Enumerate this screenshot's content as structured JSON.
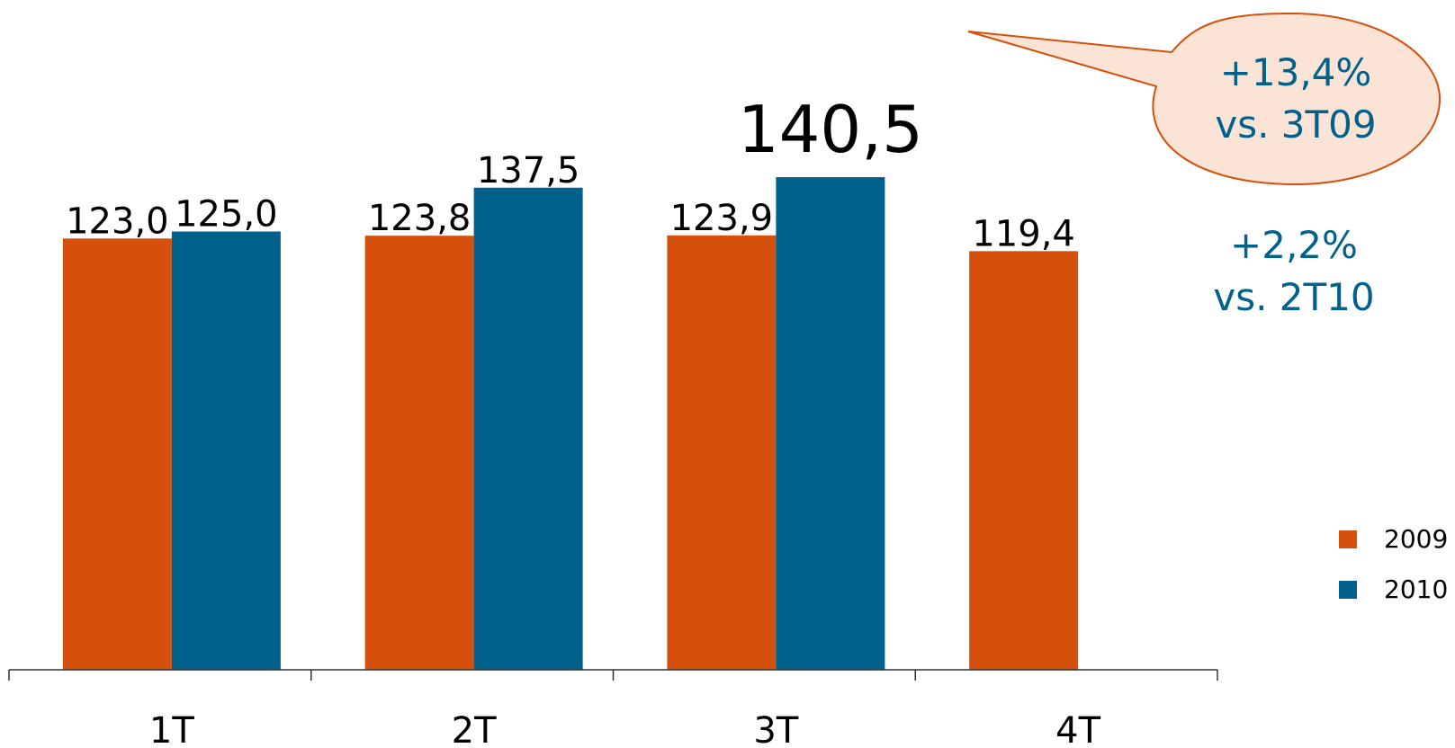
{
  "chart_data": {
    "type": "bar",
    "categories": [
      "1T",
      "2T",
      "3T",
      "4T"
    ],
    "series": [
      {
        "name": "2009",
        "color": "#D4500B",
        "values": [
          123.0,
          123.8,
          123.9,
          119.4
        ],
        "labels": [
          "123,0",
          "123,8",
          "123,9",
          "119,4"
        ]
      },
      {
        "name": "2010",
        "color": "#00628C",
        "values": [
          125.0,
          137.5,
          140.5,
          null
        ],
        "labels": [
          "125,0",
          "137,5",
          "140,5",
          ""
        ]
      }
    ],
    "highlighted_label": "140,5",
    "legend_position": "right",
    "grid": false,
    "title": "",
    "xlabel": "",
    "ylabel": ""
  },
  "annotations": {
    "callout": {
      "line1": "+13,4%",
      "line2": "vs. 3T09",
      "color": "#00628C",
      "bubble_fill": "#FBE3D6",
      "bubble_stroke": "#D4500B"
    },
    "note": {
      "line1": "+2,2%",
      "line2": "vs. 2T10",
      "color": "#00628C"
    }
  },
  "legend": {
    "items": [
      {
        "label": "2009",
        "color": "#D4500B"
      },
      {
        "label": "2010",
        "color": "#00628C"
      }
    ]
  }
}
